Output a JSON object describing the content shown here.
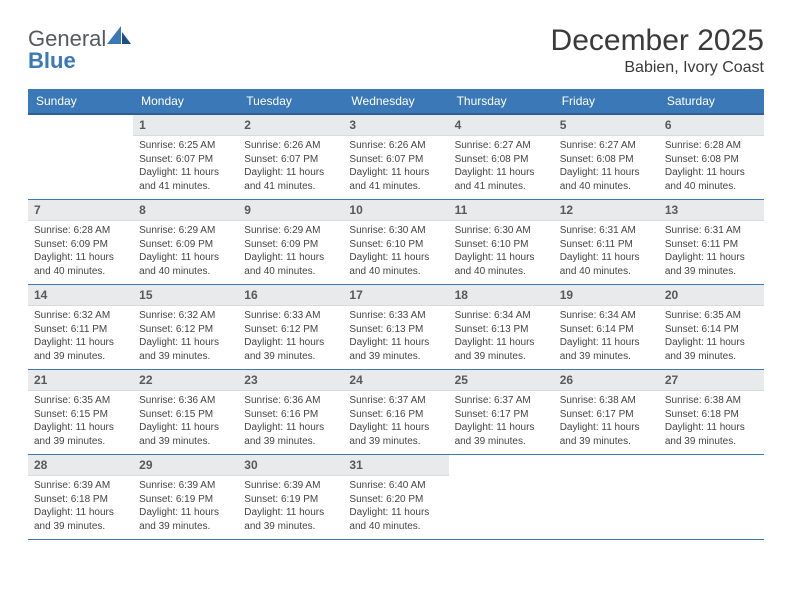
{
  "brand": {
    "word1": "General",
    "word2": "Blue"
  },
  "title": "December 2025",
  "location": "Babien, Ivory Coast",
  "colors": {
    "header_bg": "#3b78b8",
    "header_text": "#ffffff",
    "row_border": "#3b78b8",
    "daynum_bg": "#e9eaeb",
    "daynum_text": "#58595b",
    "body_text": "#444444",
    "page_bg": "#ffffff",
    "logo_gray": "#555a5e",
    "logo_blue": "#3b78b8"
  },
  "typography": {
    "title_fontsize": 30,
    "location_fontsize": 16,
    "dayhead_fontsize": 12,
    "daynum_fontsize": 12,
    "body_fontsize": 10
  },
  "layout": {
    "columns": 7,
    "rows": 5,
    "first_weekday_offset": 1
  },
  "weekdays": [
    "Sunday",
    "Monday",
    "Tuesday",
    "Wednesday",
    "Thursday",
    "Friday",
    "Saturday"
  ],
  "cells": [
    {
      "n": "",
      "sun": "",
      "set": "",
      "day": ""
    },
    {
      "n": "1",
      "sun": "Sunrise: 6:25 AM",
      "set": "Sunset: 6:07 PM",
      "day": "Daylight: 11 hours and 41 minutes."
    },
    {
      "n": "2",
      "sun": "Sunrise: 6:26 AM",
      "set": "Sunset: 6:07 PM",
      "day": "Daylight: 11 hours and 41 minutes."
    },
    {
      "n": "3",
      "sun": "Sunrise: 6:26 AM",
      "set": "Sunset: 6:07 PM",
      "day": "Daylight: 11 hours and 41 minutes."
    },
    {
      "n": "4",
      "sun": "Sunrise: 6:27 AM",
      "set": "Sunset: 6:08 PM",
      "day": "Daylight: 11 hours and 41 minutes."
    },
    {
      "n": "5",
      "sun": "Sunrise: 6:27 AM",
      "set": "Sunset: 6:08 PM",
      "day": "Daylight: 11 hours and 40 minutes."
    },
    {
      "n": "6",
      "sun": "Sunrise: 6:28 AM",
      "set": "Sunset: 6:08 PM",
      "day": "Daylight: 11 hours and 40 minutes."
    },
    {
      "n": "7",
      "sun": "Sunrise: 6:28 AM",
      "set": "Sunset: 6:09 PM",
      "day": "Daylight: 11 hours and 40 minutes."
    },
    {
      "n": "8",
      "sun": "Sunrise: 6:29 AM",
      "set": "Sunset: 6:09 PM",
      "day": "Daylight: 11 hours and 40 minutes."
    },
    {
      "n": "9",
      "sun": "Sunrise: 6:29 AM",
      "set": "Sunset: 6:09 PM",
      "day": "Daylight: 11 hours and 40 minutes."
    },
    {
      "n": "10",
      "sun": "Sunrise: 6:30 AM",
      "set": "Sunset: 6:10 PM",
      "day": "Daylight: 11 hours and 40 minutes."
    },
    {
      "n": "11",
      "sun": "Sunrise: 6:30 AM",
      "set": "Sunset: 6:10 PM",
      "day": "Daylight: 11 hours and 40 minutes."
    },
    {
      "n": "12",
      "sun": "Sunrise: 6:31 AM",
      "set": "Sunset: 6:11 PM",
      "day": "Daylight: 11 hours and 40 minutes."
    },
    {
      "n": "13",
      "sun": "Sunrise: 6:31 AM",
      "set": "Sunset: 6:11 PM",
      "day": "Daylight: 11 hours and 39 minutes."
    },
    {
      "n": "14",
      "sun": "Sunrise: 6:32 AM",
      "set": "Sunset: 6:11 PM",
      "day": "Daylight: 11 hours and 39 minutes."
    },
    {
      "n": "15",
      "sun": "Sunrise: 6:32 AM",
      "set": "Sunset: 6:12 PM",
      "day": "Daylight: 11 hours and 39 minutes."
    },
    {
      "n": "16",
      "sun": "Sunrise: 6:33 AM",
      "set": "Sunset: 6:12 PM",
      "day": "Daylight: 11 hours and 39 minutes."
    },
    {
      "n": "17",
      "sun": "Sunrise: 6:33 AM",
      "set": "Sunset: 6:13 PM",
      "day": "Daylight: 11 hours and 39 minutes."
    },
    {
      "n": "18",
      "sun": "Sunrise: 6:34 AM",
      "set": "Sunset: 6:13 PM",
      "day": "Daylight: 11 hours and 39 minutes."
    },
    {
      "n": "19",
      "sun": "Sunrise: 6:34 AM",
      "set": "Sunset: 6:14 PM",
      "day": "Daylight: 11 hours and 39 minutes."
    },
    {
      "n": "20",
      "sun": "Sunrise: 6:35 AM",
      "set": "Sunset: 6:14 PM",
      "day": "Daylight: 11 hours and 39 minutes."
    },
    {
      "n": "21",
      "sun": "Sunrise: 6:35 AM",
      "set": "Sunset: 6:15 PM",
      "day": "Daylight: 11 hours and 39 minutes."
    },
    {
      "n": "22",
      "sun": "Sunrise: 6:36 AM",
      "set": "Sunset: 6:15 PM",
      "day": "Daylight: 11 hours and 39 minutes."
    },
    {
      "n": "23",
      "sun": "Sunrise: 6:36 AM",
      "set": "Sunset: 6:16 PM",
      "day": "Daylight: 11 hours and 39 minutes."
    },
    {
      "n": "24",
      "sun": "Sunrise: 6:37 AM",
      "set": "Sunset: 6:16 PM",
      "day": "Daylight: 11 hours and 39 minutes."
    },
    {
      "n": "25",
      "sun": "Sunrise: 6:37 AM",
      "set": "Sunset: 6:17 PM",
      "day": "Daylight: 11 hours and 39 minutes."
    },
    {
      "n": "26",
      "sun": "Sunrise: 6:38 AM",
      "set": "Sunset: 6:17 PM",
      "day": "Daylight: 11 hours and 39 minutes."
    },
    {
      "n": "27",
      "sun": "Sunrise: 6:38 AM",
      "set": "Sunset: 6:18 PM",
      "day": "Daylight: 11 hours and 39 minutes."
    },
    {
      "n": "28",
      "sun": "Sunrise: 6:39 AM",
      "set": "Sunset: 6:18 PM",
      "day": "Daylight: 11 hours and 39 minutes."
    },
    {
      "n": "29",
      "sun": "Sunrise: 6:39 AM",
      "set": "Sunset: 6:19 PM",
      "day": "Daylight: 11 hours and 39 minutes."
    },
    {
      "n": "30",
      "sun": "Sunrise: 6:39 AM",
      "set": "Sunset: 6:19 PM",
      "day": "Daylight: 11 hours and 39 minutes."
    },
    {
      "n": "31",
      "sun": "Sunrise: 6:40 AM",
      "set": "Sunset: 6:20 PM",
      "day": "Daylight: 11 hours and 40 minutes."
    },
    {
      "n": "",
      "sun": "",
      "set": "",
      "day": ""
    },
    {
      "n": "",
      "sun": "",
      "set": "",
      "day": ""
    },
    {
      "n": "",
      "sun": "",
      "set": "",
      "day": ""
    }
  ]
}
